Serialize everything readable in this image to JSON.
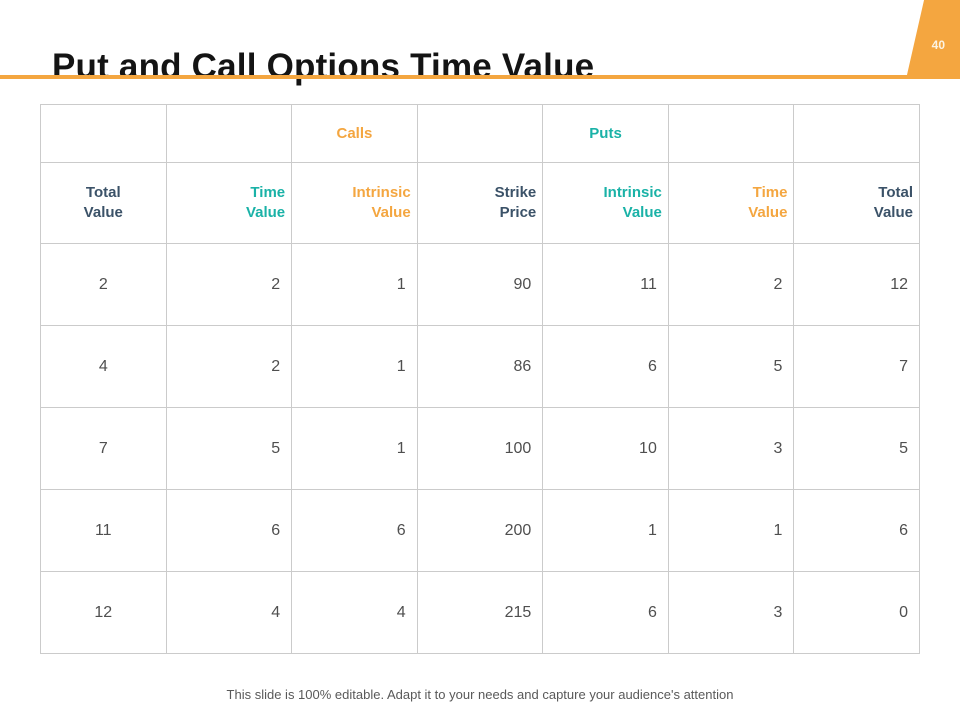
{
  "slide": {
    "title": "Put and Call Options Time Value",
    "page_number": "40",
    "footer_note": "This slide is 100% editable. Adapt it to your needs and capture your audience's attention"
  },
  "colors": {
    "background": "#FFFFFF",
    "orange": "#F4A640",
    "teal": "#1AB2A7",
    "navy": "#3B5268",
    "grid": "#CBCBCB",
    "number_text": "#4F4F4F",
    "footer_text": "#595959",
    "title_text": "#141414",
    "page_number_text": "#FCF4E4"
  },
  "chart_data": {
    "type": "table",
    "group_headers": [
      {
        "label": "Calls",
        "col_index": 2,
        "color": "orange"
      },
      {
        "label": "Puts",
        "col_index": 4,
        "color": "teal"
      }
    ],
    "columns": [
      {
        "label": "Total Value",
        "color": "navy"
      },
      {
        "label": "Time Value",
        "color": "teal"
      },
      {
        "label": "Intrinsic Value",
        "color": "orange"
      },
      {
        "label": "Strike Price",
        "color": "navy"
      },
      {
        "label": "Intrinsic Value",
        "color": "teal"
      },
      {
        "label": "Time Value",
        "color": "orange"
      },
      {
        "label": "Total Value",
        "color": "navy"
      }
    ],
    "rows": [
      [
        2,
        2,
        1,
        90,
        11,
        2,
        12
      ],
      [
        4,
        2,
        1,
        86,
        6,
        5,
        7
      ],
      [
        7,
        5,
        1,
        100,
        10,
        3,
        5
      ],
      [
        11,
        6,
        6,
        200,
        1,
        1,
        6
      ],
      [
        12,
        4,
        4,
        215,
        6,
        3,
        0
      ]
    ]
  }
}
